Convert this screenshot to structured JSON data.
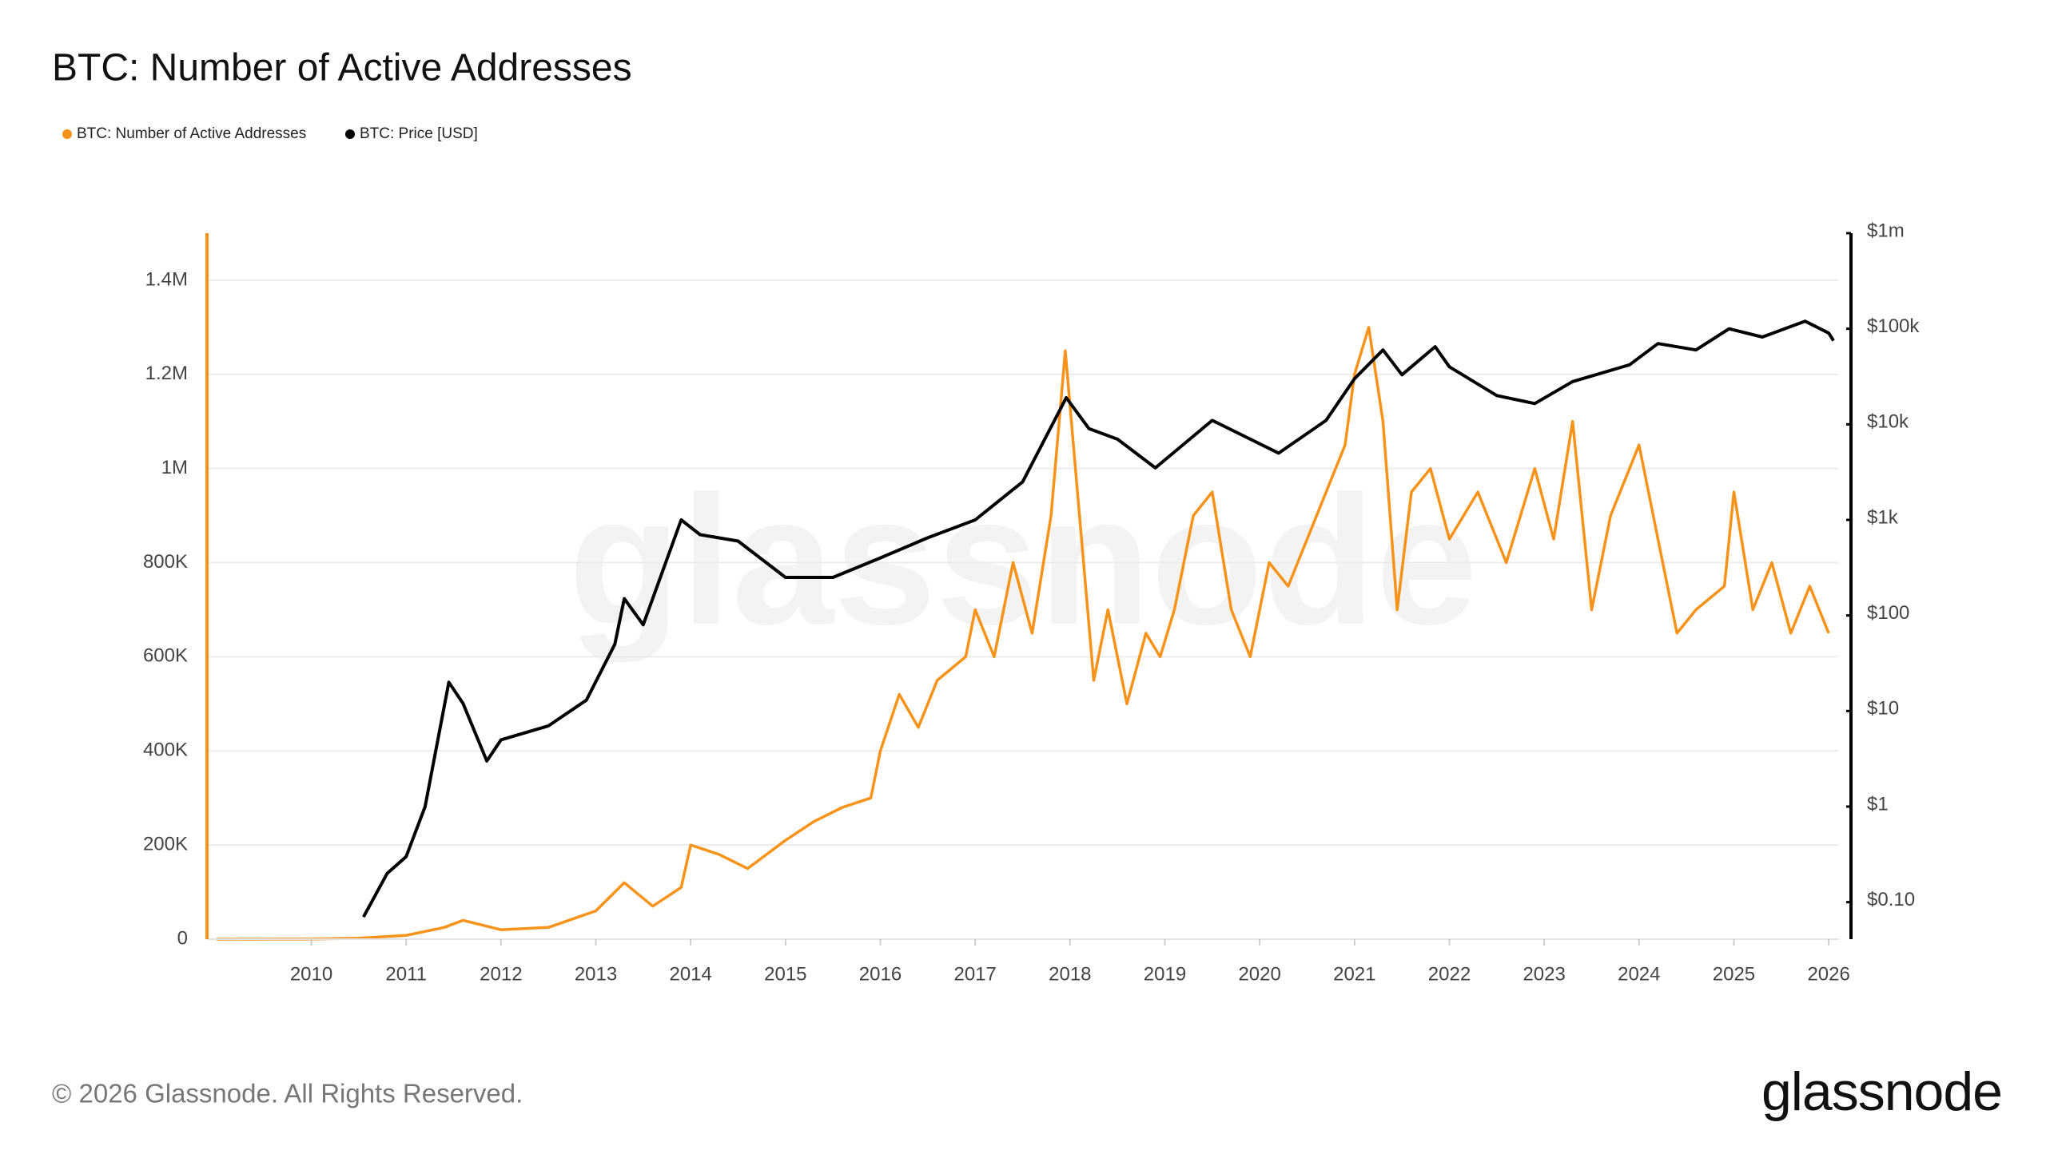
{
  "chart_data": {
    "type": "line",
    "title": "BTC: Number of Active Addresses",
    "legend_position": "top-left",
    "grid": true,
    "xlim": [
      2008.9,
      2026.1
    ],
    "xticks": [
      2010,
      2011,
      2012,
      2013,
      2014,
      2015,
      2016,
      2017,
      2018,
      2019,
      2020,
      2021,
      2022,
      2023,
      2024,
      2025,
      2026
    ],
    "ylim": [
      0,
      1500000
    ],
    "yticks": [
      0,
      {
        "value": 200000,
        "label": "200K"
      },
      {
        "value": 400000,
        "label": "400K"
      },
      {
        "value": 600000,
        "label": "600K"
      },
      {
        "value": 800000,
        "label": "800K"
      },
      {
        "value": 1000000,
        "label": "1M"
      },
      {
        "value": 1200000,
        "label": "1.2M"
      },
      {
        "value": 1400000,
        "label": "1.4M"
      }
    ],
    "y2scale": "log",
    "y2lim": [
      0.041,
      1000000
    ],
    "y2ticks": [
      {
        "value": 0.1,
        "label": "$0.10"
      },
      {
        "value": 1,
        "label": "$1"
      },
      {
        "value": 10,
        "label": "$10"
      },
      {
        "value": 100,
        "label": "$100"
      },
      {
        "value": 1000,
        "label": "$1k"
      },
      {
        "value": 10000,
        "label": "$10k"
      },
      {
        "value": 100000,
        "label": "$100k"
      },
      {
        "value": 1000000,
        "label": "$1m"
      }
    ],
    "series": [
      {
        "name": "BTC: Number of Active Addresses",
        "color": "#f7931a",
        "x": [
          2009.0,
          2010.0,
          2010.5,
          2011.0,
          2011.4,
          2011.6,
          2012.0,
          2012.5,
          2013.0,
          2013.3,
          2013.6,
          2013.9,
          2014.0,
          2014.3,
          2014.6,
          2015.0,
          2015.3,
          2015.6,
          2015.9,
          2016.0,
          2016.2,
          2016.4,
          2016.6,
          2016.9,
          2017.0,
          2017.2,
          2017.4,
          2017.6,
          2017.8,
          2017.95,
          2018.1,
          2018.25,
          2018.4,
          2018.6,
          2018.8,
          2018.95,
          2019.1,
          2019.3,
          2019.5,
          2019.7,
          2019.9,
          2020.1,
          2020.3,
          2020.6,
          2020.9,
          2021.0,
          2021.15,
          2021.3,
          2021.45,
          2021.6,
          2021.8,
          2022.0,
          2022.3,
          2022.6,
          2022.9,
          2023.1,
          2023.3,
          2023.5,
          2023.7,
          2024.0,
          2024.2,
          2024.4,
          2024.6,
          2024.9,
          2025.0,
          2025.2,
          2025.4,
          2025.6,
          2025.8,
          2026.0
        ],
        "values": [
          0,
          100,
          2000,
          8000,
          25000,
          40000,
          20000,
          25000,
          60000,
          120000,
          70000,
          110000,
          200000,
          180000,
          150000,
          210000,
          250000,
          280000,
          300000,
          400000,
          520000,
          450000,
          550000,
          600000,
          700000,
          600000,
          800000,
          650000,
          900000,
          1250000,
          900000,
          550000,
          700000,
          500000,
          650000,
          600000,
          700000,
          900000,
          950000,
          700000,
          600000,
          800000,
          750000,
          900000,
          1050000,
          1200000,
          1300000,
          1100000,
          700000,
          950000,
          1000000,
          850000,
          950000,
          800000,
          1000000,
          850000,
          1100000,
          700000,
          900000,
          1050000,
          850000,
          650000,
          700000,
          750000,
          950000,
          700000,
          800000,
          650000,
          750000,
          650000
        ]
      },
      {
        "name": "BTC: Price [USD]",
        "color": "#000000",
        "axis": "y2",
        "x": [
          2010.55,
          2010.8,
          2011.0,
          2011.2,
          2011.45,
          2011.6,
          2011.85,
          2012.0,
          2012.5,
          2012.9,
          2013.2,
          2013.3,
          2013.5,
          2013.9,
          2014.1,
          2014.5,
          2015.0,
          2015.5,
          2016.0,
          2016.5,
          2017.0,
          2017.5,
          2017.96,
          2018.2,
          2018.5,
          2018.9,
          2019.5,
          2020.2,
          2020.7,
          2021.0,
          2021.3,
          2021.5,
          2021.85,
          2022.0,
          2022.5,
          2022.9,
          2023.3,
          2023.9,
          2024.2,
          2024.6,
          2024.95,
          2025.3,
          2025.75,
          2026.0,
          2026.05
        ],
        "values": [
          0.07,
          0.2,
          0.3,
          1,
          20,
          12,
          3,
          5,
          7,
          13,
          50,
          150,
          80,
          1000,
          700,
          600,
          250,
          250,
          400,
          650,
          1000,
          2500,
          19000,
          9000,
          7000,
          3500,
          11000,
          5000,
          11000,
          30000,
          60000,
          33000,
          65000,
          40000,
          20000,
          16500,
          28000,
          42000,
          70000,
          60000,
          100000,
          82000,
          120000,
          90000,
          75000
        ]
      }
    ]
  },
  "footer": {
    "copyright": "© 2026 Glassnode. All Rights Reserved.",
    "logo": "glassnode",
    "watermark": "glassnode"
  }
}
